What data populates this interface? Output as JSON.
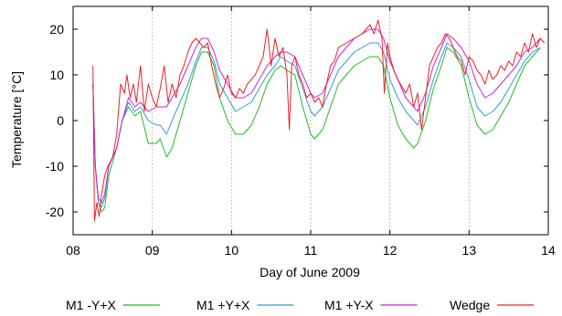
{
  "chart_data": {
    "type": "line",
    "xlabel": "Day of June 2009",
    "ylabel": "Temperature [°C]",
    "xlim": [
      8,
      14
    ],
    "ylim": [
      -25,
      25
    ],
    "x_ticks": [
      8,
      9,
      10,
      11,
      12,
      13,
      14
    ],
    "x_tick_labels": [
      "08",
      "09",
      "10",
      "11",
      "12",
      "13",
      "14"
    ],
    "y_ticks": [
      -20,
      -10,
      0,
      10,
      20
    ],
    "y_tick_labels": [
      "-20",
      "-10",
      "0",
      "10",
      "20"
    ],
    "grid": "vertical dotted at x ticks",
    "legend_position": "bottom",
    "series": [
      {
        "name": "M1 -Y+X",
        "color": "#22bb22",
        "points": [
          [
            8.25,
            8
          ],
          [
            8.28,
            -10
          ],
          [
            8.32,
            -18
          ],
          [
            8.36,
            -20
          ],
          [
            8.4,
            -19
          ],
          [
            8.45,
            -12
          ],
          [
            8.55,
            -6
          ],
          [
            8.62,
            0
          ],
          [
            8.7,
            3
          ],
          [
            8.78,
            1
          ],
          [
            8.85,
            2
          ],
          [
            8.95,
            -5
          ],
          [
            9.05,
            -5
          ],
          [
            9.1,
            -4
          ],
          [
            9.18,
            -8
          ],
          [
            9.25,
            -6
          ],
          [
            9.35,
            0
          ],
          [
            9.45,
            6
          ],
          [
            9.55,
            12
          ],
          [
            9.62,
            15
          ],
          [
            9.7,
            15
          ],
          [
            9.78,
            12
          ],
          [
            9.85,
            5
          ],
          [
            9.95,
            0
          ],
          [
            10.05,
            -3
          ],
          [
            10.15,
            -3
          ],
          [
            10.25,
            -1
          ],
          [
            10.35,
            3
          ],
          [
            10.45,
            8
          ],
          [
            10.55,
            11
          ],
          [
            10.62,
            12
          ],
          [
            10.7,
            11
          ],
          [
            10.8,
            10
          ],
          [
            10.9,
            3
          ],
          [
            11.0,
            -3
          ],
          [
            11.05,
            -4
          ],
          [
            11.15,
            -2
          ],
          [
            11.25,
            3
          ],
          [
            11.35,
            8
          ],
          [
            11.45,
            10
          ],
          [
            11.55,
            12
          ],
          [
            11.65,
            13
          ],
          [
            11.75,
            14
          ],
          [
            11.85,
            14
          ],
          [
            11.92,
            12
          ],
          [
            12.0,
            5
          ],
          [
            12.1,
            -1
          ],
          [
            12.2,
            -4
          ],
          [
            12.3,
            -6
          ],
          [
            12.35,
            -5
          ],
          [
            12.45,
            0
          ],
          [
            12.55,
            7
          ],
          [
            12.65,
            12
          ],
          [
            12.72,
            16
          ],
          [
            12.8,
            15
          ],
          [
            12.9,
            12
          ],
          [
            13.0,
            5
          ],
          [
            13.1,
            -1
          ],
          [
            13.2,
            -3
          ],
          [
            13.3,
            -2
          ],
          [
            13.4,
            1
          ],
          [
            13.5,
            4
          ],
          [
            13.6,
            8
          ],
          [
            13.7,
            12
          ],
          [
            13.8,
            14
          ],
          [
            13.9,
            16
          ]
        ]
      },
      {
        "name": "M1 +Y+X",
        "color": "#3399dd",
        "points": [
          [
            8.25,
            8
          ],
          [
            8.28,
            -10
          ],
          [
            8.32,
            -18
          ],
          [
            8.36,
            -19
          ],
          [
            8.4,
            -17
          ],
          [
            8.45,
            -10
          ],
          [
            8.55,
            -6
          ],
          [
            8.62,
            0
          ],
          [
            8.7,
            4
          ],
          [
            8.78,
            2
          ],
          [
            8.85,
            3
          ],
          [
            8.95,
            0
          ],
          [
            9.05,
            -1
          ],
          [
            9.1,
            -1
          ],
          [
            9.18,
            -3
          ],
          [
            9.25,
            0
          ],
          [
            9.35,
            4
          ],
          [
            9.45,
            8
          ],
          [
            9.55,
            13
          ],
          [
            9.62,
            16
          ],
          [
            9.7,
            16
          ],
          [
            9.78,
            13
          ],
          [
            9.85,
            8
          ],
          [
            9.95,
            5
          ],
          [
            10.05,
            2
          ],
          [
            10.15,
            3
          ],
          [
            10.25,
            4
          ],
          [
            10.35,
            7
          ],
          [
            10.45,
            10
          ],
          [
            10.55,
            12
          ],
          [
            10.62,
            14
          ],
          [
            10.7,
            13
          ],
          [
            10.8,
            12
          ],
          [
            10.9,
            7
          ],
          [
            11.0,
            2
          ],
          [
            11.05,
            1
          ],
          [
            11.15,
            3
          ],
          [
            11.25,
            7
          ],
          [
            11.35,
            11
          ],
          [
            11.45,
            13
          ],
          [
            11.55,
            15
          ],
          [
            11.65,
            16
          ],
          [
            11.75,
            17
          ],
          [
            11.85,
            17
          ],
          [
            11.92,
            15
          ],
          [
            12.0,
            9
          ],
          [
            12.1,
            5
          ],
          [
            12.2,
            2
          ],
          [
            12.3,
            0
          ],
          [
            12.35,
            -1
          ],
          [
            12.45,
            3
          ],
          [
            12.55,
            9
          ],
          [
            12.65,
            14
          ],
          [
            12.72,
            17
          ],
          [
            12.8,
            16
          ],
          [
            12.9,
            14
          ],
          [
            13.0,
            9
          ],
          [
            13.1,
            3
          ],
          [
            13.2,
            1
          ],
          [
            13.3,
            2
          ],
          [
            13.4,
            4
          ],
          [
            13.5,
            7
          ],
          [
            13.6,
            10
          ],
          [
            13.7,
            13
          ],
          [
            13.8,
            15
          ],
          [
            13.9,
            16
          ]
        ]
      },
      {
        "name": "M1 +Y-X",
        "color": "#cc22dd",
        "points": [
          [
            8.25,
            8
          ],
          [
            8.28,
            -10
          ],
          [
            8.32,
            -17
          ],
          [
            8.36,
            -18
          ],
          [
            8.4,
            -16
          ],
          [
            8.45,
            -10
          ],
          [
            8.55,
            -6
          ],
          [
            8.62,
            0
          ],
          [
            8.7,
            5
          ],
          [
            8.78,
            3
          ],
          [
            8.85,
            4
          ],
          [
            8.95,
            2
          ],
          [
            9.05,
            3
          ],
          [
            9.1,
            3
          ],
          [
            9.18,
            3
          ],
          [
            9.25,
            5
          ],
          [
            9.35,
            8
          ],
          [
            9.45,
            12
          ],
          [
            9.55,
            16
          ],
          [
            9.62,
            18
          ],
          [
            9.7,
            18
          ],
          [
            9.78,
            15
          ],
          [
            9.85,
            11
          ],
          [
            9.95,
            8
          ],
          [
            10.05,
            5
          ],
          [
            10.15,
            5
          ],
          [
            10.25,
            6
          ],
          [
            10.35,
            9
          ],
          [
            10.45,
            12
          ],
          [
            10.55,
            14
          ],
          [
            10.62,
            15
          ],
          [
            10.7,
            15
          ],
          [
            10.8,
            14
          ],
          [
            10.9,
            10
          ],
          [
            11.0,
            6
          ],
          [
            11.05,
            5
          ],
          [
            11.15,
            6
          ],
          [
            11.25,
            10
          ],
          [
            11.35,
            14
          ],
          [
            11.45,
            16
          ],
          [
            11.55,
            18
          ],
          [
            11.65,
            19
          ],
          [
            11.75,
            20
          ],
          [
            11.85,
            20
          ],
          [
            11.92,
            18
          ],
          [
            12.0,
            13
          ],
          [
            12.1,
            9
          ],
          [
            12.2,
            5
          ],
          [
            12.3,
            3
          ],
          [
            12.35,
            2
          ],
          [
            12.45,
            6
          ],
          [
            12.55,
            12
          ],
          [
            12.65,
            16
          ],
          [
            12.72,
            19
          ],
          [
            12.8,
            18
          ],
          [
            12.9,
            16
          ],
          [
            13.0,
            13
          ],
          [
            13.1,
            8
          ],
          [
            13.2,
            5
          ],
          [
            13.3,
            6
          ],
          [
            13.4,
            8
          ],
          [
            13.5,
            10
          ],
          [
            13.6,
            12
          ],
          [
            13.7,
            15
          ],
          [
            13.8,
            16
          ],
          [
            13.9,
            18
          ]
        ]
      },
      {
        "name": "Wedge",
        "color": "#ee2222",
        "points": [
          [
            8.25,
            12
          ],
          [
            8.27,
            -22
          ],
          [
            8.3,
            -18
          ],
          [
            8.33,
            -21
          ],
          [
            8.36,
            -16
          ],
          [
            8.4,
            -12
          ],
          [
            8.44,
            -10
          ],
          [
            8.5,
            -8
          ],
          [
            8.55,
            -3
          ],
          [
            8.6,
            8
          ],
          [
            8.65,
            6
          ],
          [
            8.68,
            10
          ],
          [
            8.72,
            5
          ],
          [
            8.76,
            8
          ],
          [
            8.8,
            4
          ],
          [
            8.85,
            12
          ],
          [
            8.9,
            2
          ],
          [
            8.95,
            8
          ],
          [
            9.0,
            5
          ],
          [
            9.05,
            3
          ],
          [
            9.1,
            7
          ],
          [
            9.15,
            12
          ],
          [
            9.2,
            4
          ],
          [
            9.25,
            8
          ],
          [
            9.3,
            5
          ],
          [
            9.35,
            10
          ],
          [
            9.4,
            12
          ],
          [
            9.45,
            15
          ],
          [
            9.5,
            17
          ],
          [
            9.55,
            18
          ],
          [
            9.6,
            17
          ],
          [
            9.65,
            16
          ],
          [
            9.7,
            17
          ],
          [
            9.75,
            12
          ],
          [
            9.8,
            8
          ],
          [
            9.85,
            5
          ],
          [
            9.9,
            7
          ],
          [
            9.95,
            10
          ],
          [
            10.0,
            6
          ],
          [
            10.05,
            5
          ],
          [
            10.1,
            7
          ],
          [
            10.15,
            6
          ],
          [
            10.2,
            8
          ],
          [
            10.3,
            10
          ],
          [
            10.4,
            14
          ],
          [
            10.45,
            20
          ],
          [
            10.5,
            12
          ],
          [
            10.55,
            18
          ],
          [
            10.6,
            14
          ],
          [
            10.65,
            16
          ],
          [
            10.7,
            10
          ],
          [
            10.73,
            -2
          ],
          [
            10.76,
            12
          ],
          [
            10.8,
            14
          ],
          [
            10.85,
            10
          ],
          [
            10.9,
            8
          ],
          [
            10.95,
            5
          ],
          [
            11.0,
            6
          ],
          [
            11.05,
            4
          ],
          [
            11.1,
            5
          ],
          [
            11.15,
            3
          ],
          [
            11.2,
            8
          ],
          [
            11.25,
            12
          ],
          [
            11.3,
            13
          ],
          [
            11.35,
            16
          ],
          [
            11.45,
            17
          ],
          [
            11.55,
            18
          ],
          [
            11.65,
            19
          ],
          [
            11.75,
            21
          ],
          [
            11.8,
            19
          ],
          [
            11.85,
            22
          ],
          [
            11.9,
            18
          ],
          [
            11.93,
            6
          ],
          [
            11.97,
            17
          ],
          [
            12.0,
            14
          ],
          [
            12.05,
            11
          ],
          [
            12.1,
            9
          ],
          [
            12.2,
            6
          ],
          [
            12.25,
            8
          ],
          [
            12.3,
            3
          ],
          [
            12.35,
            6
          ],
          [
            12.4,
            -2
          ],
          [
            12.45,
            5
          ],
          [
            12.5,
            12
          ],
          [
            12.55,
            14
          ],
          [
            12.6,
            16
          ],
          [
            12.65,
            17
          ],
          [
            12.7,
            19
          ],
          [
            12.75,
            18
          ],
          [
            12.8,
            16
          ],
          [
            12.85,
            14
          ],
          [
            12.9,
            13
          ],
          [
            12.95,
            10
          ],
          [
            13.0,
            14
          ],
          [
            13.05,
            13
          ],
          [
            13.1,
            11
          ],
          [
            13.15,
            10
          ],
          [
            13.2,
            8
          ],
          [
            13.25,
            11
          ],
          [
            13.3,
            9
          ],
          [
            13.35,
            10
          ],
          [
            13.4,
            12
          ],
          [
            13.45,
            11
          ],
          [
            13.5,
            13
          ],
          [
            13.55,
            12
          ],
          [
            13.6,
            15
          ],
          [
            13.65,
            14
          ],
          [
            13.7,
            17
          ],
          [
            13.75,
            15
          ],
          [
            13.8,
            19
          ],
          [
            13.85,
            16
          ],
          [
            13.9,
            18
          ],
          [
            13.95,
            17
          ]
        ]
      }
    ]
  }
}
